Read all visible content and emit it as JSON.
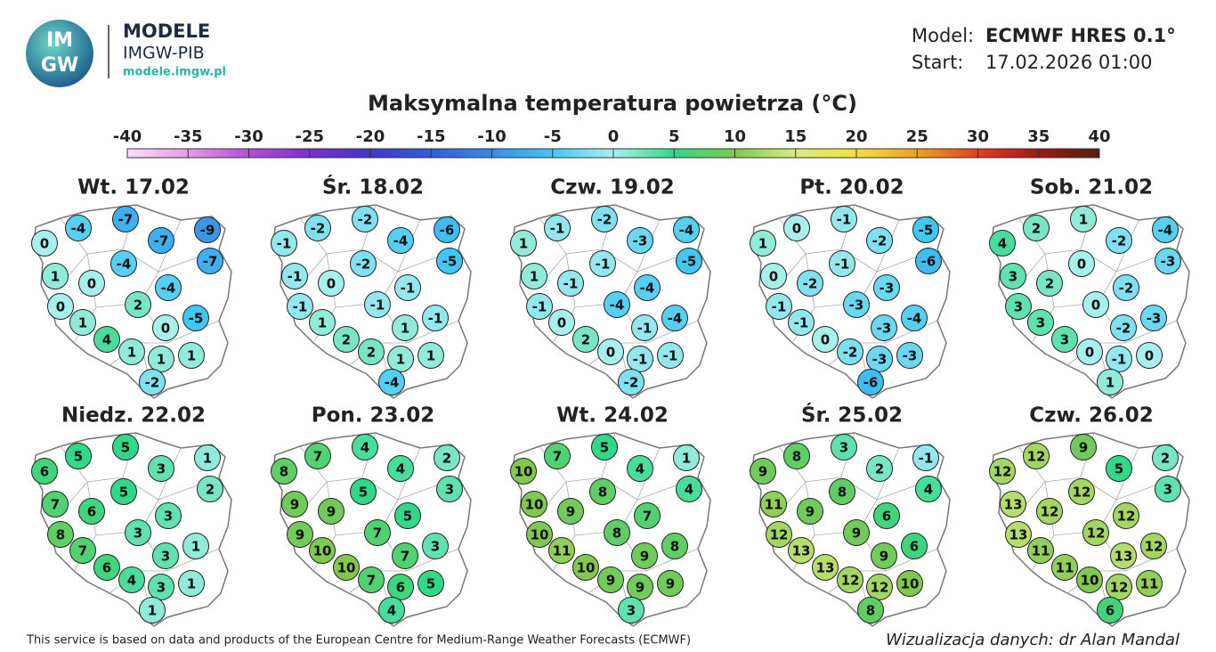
{
  "header": {
    "logo_top": "IM",
    "logo_bottom": "GW",
    "brand": "MODELE",
    "org": "IMGW-PIB",
    "url": "modele.imgw.pl",
    "model_label": "Model:",
    "model": "ECMWF HRES 0.1°",
    "start_label": "Start:",
    "start": "17.02.2026 01:00"
  },
  "title": "Maksymalna temperatura powietrza (°C)",
  "colorbar": {
    "ticks": [
      -40,
      -35,
      -30,
      -25,
      -20,
      -15,
      -10,
      -5,
      0,
      5,
      10,
      15,
      20,
      25,
      30,
      35,
      40
    ],
    "colors": [
      "#f8e0f5",
      "#e59be6",
      "#b34fd8",
      "#7a2fd0",
      "#4636c8",
      "#2f5fd8",
      "#3a8ae8",
      "#40c8f5",
      "#a8f0ec",
      "#30d888",
      "#80c850",
      "#d8ec80",
      "#f0e040",
      "#f0a020",
      "#e04020",
      "#a01818",
      "#502010"
    ]
  },
  "panels": [
    {
      "day": "Wt. 17.02",
      "values": [
        -4,
        -7,
        -9,
        0,
        -7,
        -7,
        1,
        -4,
        0,
        -4,
        0,
        2,
        0,
        -5,
        1,
        4,
        1,
        1,
        1,
        -2
      ]
    },
    {
      "day": "Śr. 18.02",
      "values": [
        -2,
        -2,
        -6,
        -1,
        -4,
        -5,
        -1,
        -2,
        0,
        -1,
        -1,
        -1,
        1,
        -1,
        1,
        2,
        2,
        1,
        1,
        -4
      ]
    },
    {
      "day": "Czw. 19.02",
      "values": [
        -1,
        -2,
        -4,
        1,
        -3,
        -5,
        1,
        -1,
        -1,
        -4,
        -1,
        -4,
        -1,
        -4,
        0,
        2,
        0,
        -1,
        -1,
        -2
      ]
    },
    {
      "day": "Pt. 20.02",
      "values": [
        0,
        -1,
        -5,
        1,
        -2,
        -6,
        0,
        -1,
        -2,
        -3,
        -1,
        -3,
        -3,
        -4,
        -1,
        0,
        -2,
        -3,
        -3,
        -6
      ]
    },
    {
      "day": "Sob. 21.02",
      "values": [
        2,
        1,
        -4,
        4,
        -2,
        -3,
        3,
        0,
        2,
        -2,
        3,
        0,
        -2,
        -3,
        3,
        3,
        0,
        -1,
        0,
        1
      ]
    },
    {
      "day": "Niedz. 22.02",
      "values": [
        5,
        5,
        1,
        6,
        3,
        2,
        7,
        5,
        6,
        3,
        8,
        3,
        3,
        1,
        7,
        6,
        4,
        3,
        1,
        1
      ]
    },
    {
      "day": "Pon. 23.02",
      "values": [
        7,
        4,
        2,
        8,
        4,
        3,
        9,
        5,
        9,
        5,
        9,
        7,
        7,
        3,
        10,
        10,
        7,
        6,
        5,
        4
      ]
    },
    {
      "day": "Wt. 24.02",
      "values": [
        7,
        5,
        1,
        10,
        4,
        4,
        10,
        8,
        9,
        7,
        10,
        8,
        9,
        8,
        11,
        10,
        9,
        9,
        9,
        3
      ]
    },
    {
      "day": "Śr. 25.02",
      "values": [
        8,
        3,
        -1,
        9,
        2,
        4,
        11,
        8,
        9,
        6,
        12,
        9,
        9,
        6,
        13,
        13,
        12,
        12,
        10,
        8
      ]
    },
    {
      "day": "Czw. 26.02",
      "values": [
        12,
        9,
        2,
        12,
        5,
        3,
        13,
        12,
        12,
        12,
        13,
        12,
        13,
        12,
        11,
        11,
        10,
        12,
        11,
        6
      ]
    }
  ],
  "footer": {
    "source": "This service is based on data and products of the European Centre for Medium-Range Weather Forecasts (ECMWF)",
    "credit": "Wizualizacja danych: dr Alan Mandal"
  }
}
